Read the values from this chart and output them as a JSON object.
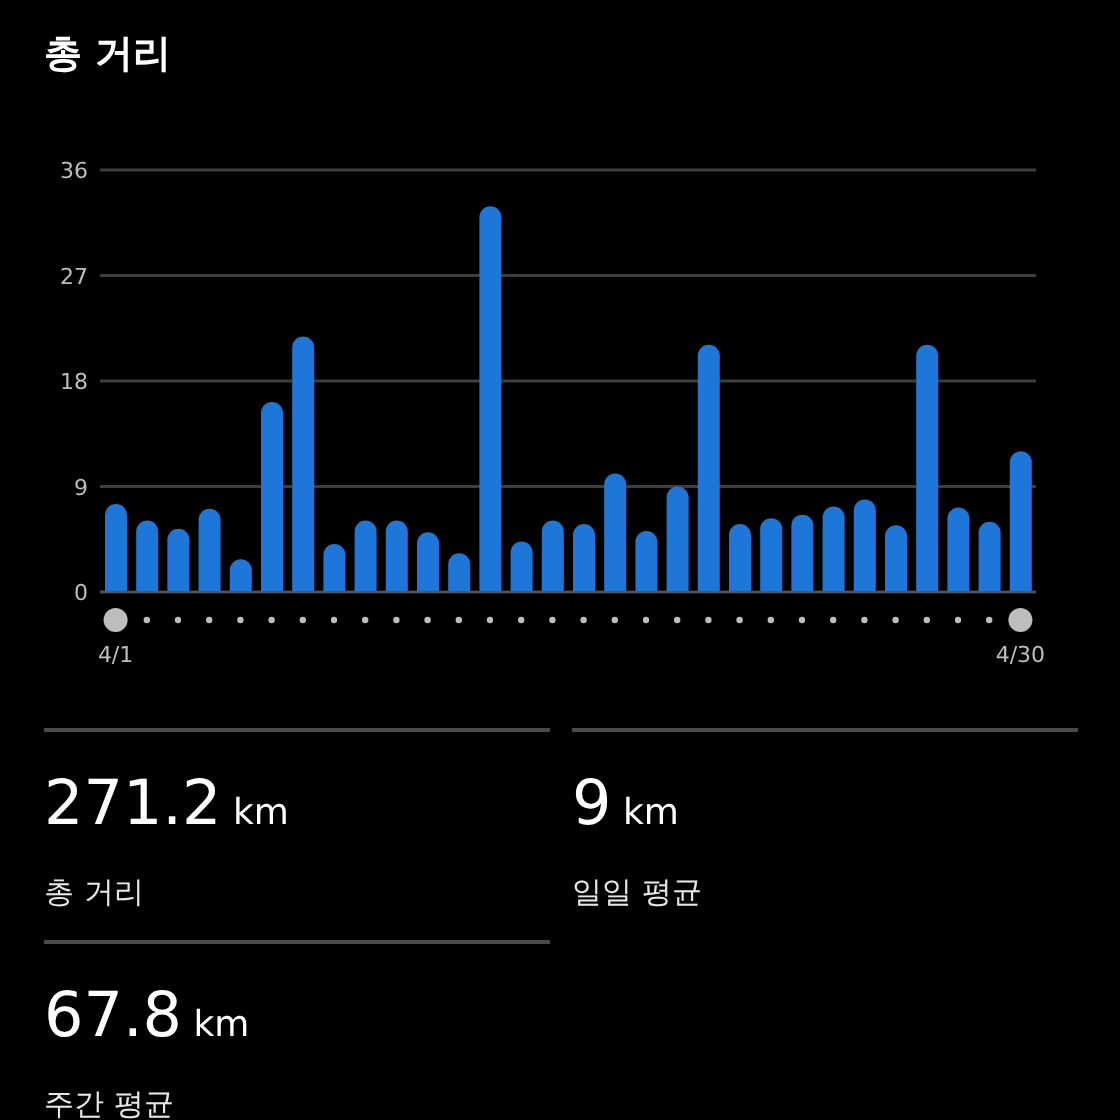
{
  "chart_data": {
    "type": "bar",
    "title": "총 거리",
    "categories": [
      "4/1",
      null,
      null,
      null,
      null,
      null,
      null,
      null,
      null,
      null,
      null,
      null,
      null,
      null,
      null,
      null,
      null,
      null,
      null,
      null,
      null,
      null,
      null,
      null,
      null,
      null,
      null,
      null,
      null,
      "4/30"
    ],
    "values": [
      7.5,
      6.1,
      5.4,
      7.1,
      2.8,
      16.2,
      21.8,
      4.1,
      6.1,
      6.1,
      5.1,
      3.3,
      32.9,
      4.3,
      6.1,
      5.8,
      10.1,
      5.2,
      9.0,
      21.1,
      5.8,
      6.3,
      6.6,
      7.3,
      7.9,
      5.7,
      21.1,
      7.2,
      6.0,
      12.0
    ],
    "color": "#1e77d8",
    "ylim": [
      0,
      36
    ],
    "yticks": [
      0,
      9,
      18,
      27,
      36
    ],
    "grid": "y",
    "annotations": [
      "271.2 km",
      "총 거리",
      "9 km",
      "일일 평균",
      "67.8 km",
      "주간 평균"
    ]
  }
}
